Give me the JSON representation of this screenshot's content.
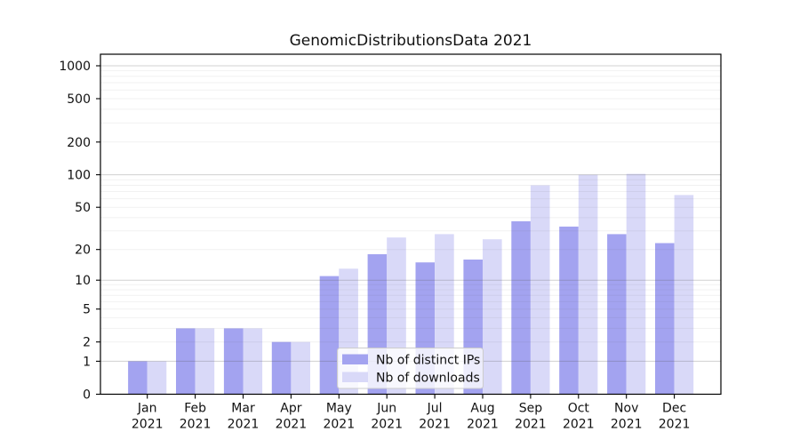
{
  "chart_data": {
    "type": "bar",
    "title": "GenomicDistributionsData 2021",
    "year_label": "2021",
    "categories": [
      "Jan",
      "Feb",
      "Mar",
      "Apr",
      "May",
      "Jun",
      "Jul",
      "Aug",
      "Sep",
      "Oct",
      "Nov",
      "Dec"
    ],
    "series": [
      {
        "name": "Nb of distinct IPs",
        "color": "#a3a3f0",
        "values": [
          1,
          3,
          3,
          2,
          11,
          18,
          15,
          16,
          37,
          33,
          28,
          23
        ]
      },
      {
        "name": "Nb of downloads",
        "color": "#d9d9f8",
        "values": [
          1,
          3,
          3,
          2,
          13,
          26,
          28,
          25,
          80,
          100,
          102,
          65
        ]
      }
    ],
    "xlabel": "",
    "ylabel": "",
    "yscale": "log1p",
    "yticks": [
      0,
      1,
      2,
      5,
      10,
      20,
      50,
      100,
      200,
      500,
      1000
    ],
    "ylim": [
      0,
      1250
    ],
    "grid": "major+minor, drawn above bars",
    "legend_position": "lower center"
  },
  "style": {
    "background": "#ffffff",
    "spine_color": "#000000",
    "text_color": "#111111",
    "grid_major_color": "rgba(90,90,90,0.28)",
    "grid_minor_color": "rgba(90,90,90,0.085)",
    "legend_bg": "rgba(255,255,255,0.8)",
    "legend_border": "#cccccc"
  }
}
